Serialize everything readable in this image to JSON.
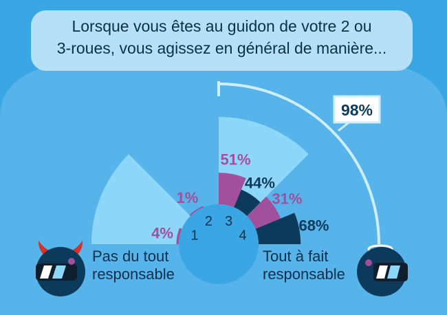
{
  "colors": {
    "background": "#3aa6e4",
    "panel": "#57b4ea",
    "question_box": "#b5e0f7",
    "light_wedge": "#8dd7fb",
    "purple": "#a24f9c",
    "navy": "#0c3a5b",
    "text": "#0d2e4a"
  },
  "question": {
    "line1": "Lorsque vous êtes au guidon de votre 2 ou",
    "line2": "3-roues, vous agissez en général de manière..."
  },
  "labels": {
    "left": {
      "line1": "Pas du tout",
      "line2": "responsable"
    },
    "right": {
      "line1": "Tout à fait",
      "line2": "responsable"
    }
  },
  "bracket_label": "98%",
  "icons": {
    "left": "devil-helmet-icon",
    "right": "angel-helmet-icon"
  },
  "chart_data": {
    "type": "polar-bar",
    "categories": [
      "1",
      "2",
      "3",
      "4"
    ],
    "series": [
      {
        "values": [
          4,
          1,
          51,
          44
        ],
        "color": "#a24f9c"
      },
      {
        "values": [
          null,
          null,
          31,
          68
        ],
        "color": "#0c3a5b"
      }
    ],
    "data_labels": [
      "4%",
      "1%",
      "51%",
      "31%",
      "44%",
      "68%"
    ],
    "bracket": {
      "categories": [
        "3",
        "4"
      ],
      "label": "98%"
    }
  }
}
